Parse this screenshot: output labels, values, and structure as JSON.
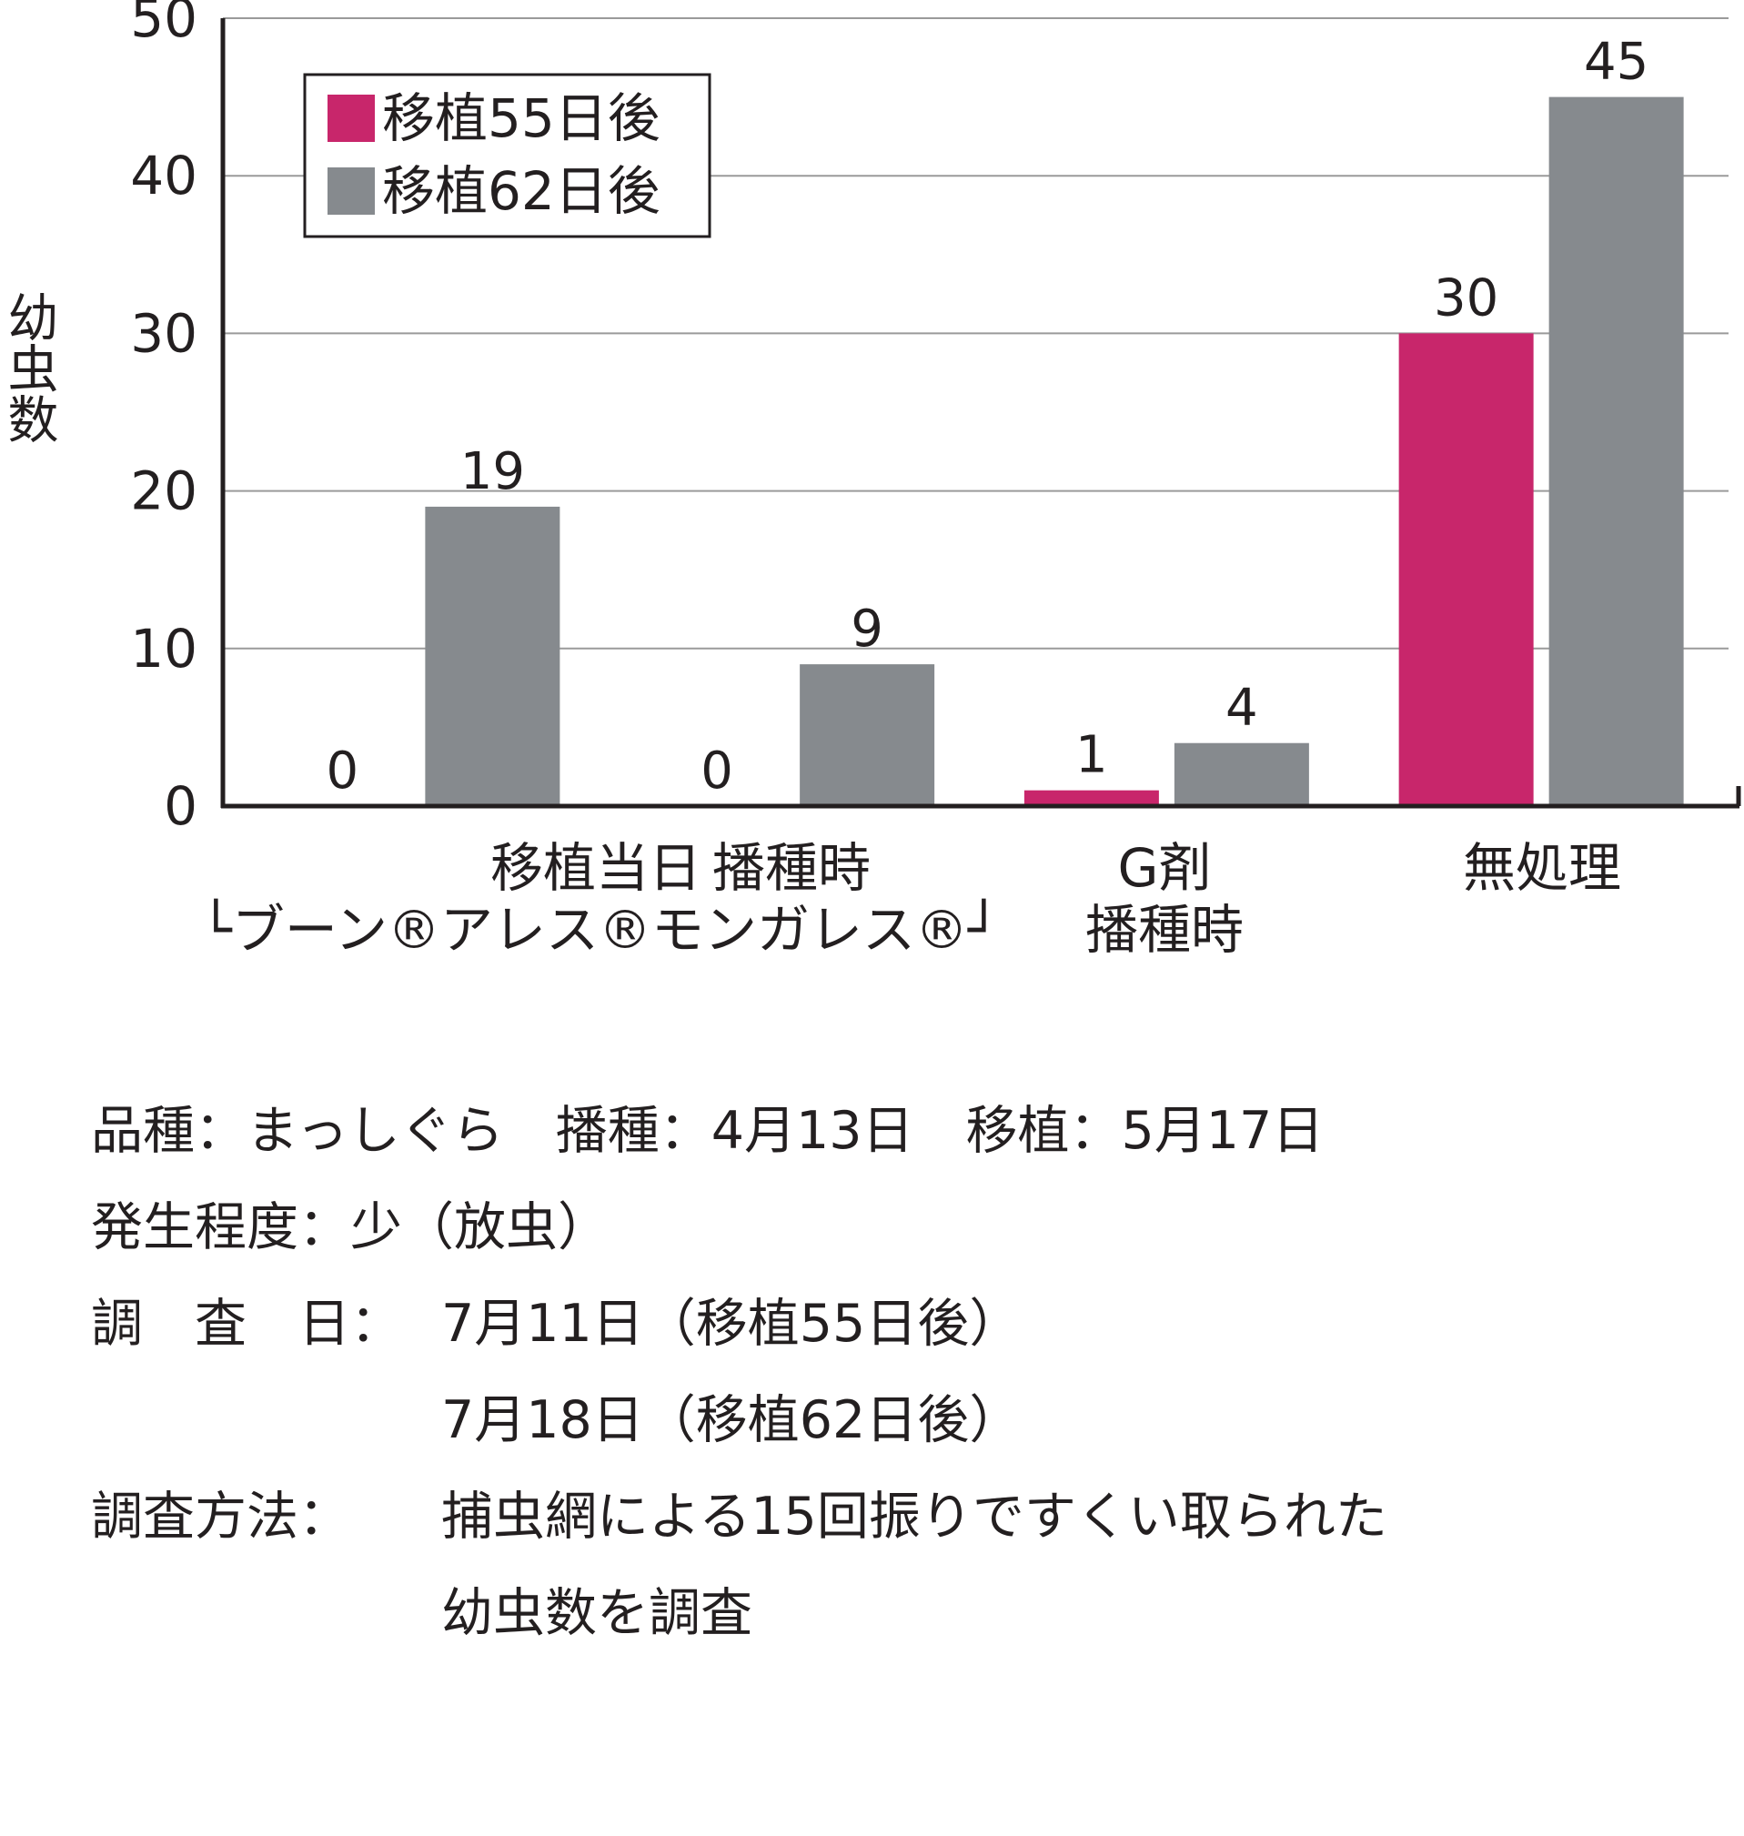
{
  "chart_data": {
    "type": "bar",
    "ylabel": "幼虫数",
    "ylim": [
      0,
      50
    ],
    "yticks": [
      0,
      10,
      20,
      30,
      40,
      50
    ],
    "grid": true,
    "legend_position": "top-left",
    "categories": [
      {
        "lines": [
          "移植当日",
          "└ブーン®アレス®モンガレス®┘"
        ]
      },
      {
        "lines": [
          "播種時"
        ]
      },
      {
        "lines": [
          "G剤",
          "播種時"
        ]
      },
      {
        "lines": [
          "無処理"
        ]
      }
    ],
    "series": [
      {
        "name": "移植55日後",
        "color": "#c8266b",
        "values": [
          0,
          0,
          1,
          30
        ]
      },
      {
        "name": "移植62日後",
        "color": "#868a8e",
        "values": [
          19,
          9,
          4,
          45
        ]
      }
    ]
  },
  "notes": {
    "line1": "品種：まっしぐら　播種：4月13日　移植：5月17日",
    "line2": "発生程度：少（放虫）",
    "line3_key": "調　査　日：",
    "line3_val": "7月11日（移植55日後）",
    "line4": "7月18日（移植62日後）",
    "line5_key": "調査方法：",
    "line5_val": "捕虫網による15回振りですくい取られた",
    "line6": "幼虫数を調査"
  }
}
